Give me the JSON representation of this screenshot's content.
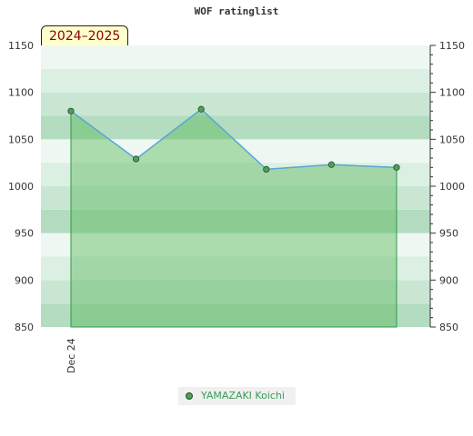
{
  "title": "WOF ratinglist",
  "season_label": "2024–2025",
  "chart_data": {
    "type": "area",
    "title": "WOF ratinglist",
    "xlabel": "",
    "ylabel": "",
    "ylim": [
      850,
      1150
    ],
    "y_ticks": [
      850,
      900,
      950,
      1000,
      1050,
      1100,
      1150
    ],
    "x_tick_labels": [
      "Dec 24"
    ],
    "grid": "horizontal bands",
    "legend_position": "bottom-center",
    "series": [
      {
        "name": "YAMAZAKI Koichi",
        "values": [
          1080,
          1029,
          1082,
          1018,
          1023,
          1020
        ],
        "color": "#4aa05a"
      }
    ],
    "colors": {
      "line": "#5aa6d8",
      "fill": "#5cb85c",
      "band_dark": "#b3dcc0",
      "band_mid": "#c9e6d3",
      "band_light": "#dcefe3",
      "band_pale": "#eef7f1"
    }
  }
}
